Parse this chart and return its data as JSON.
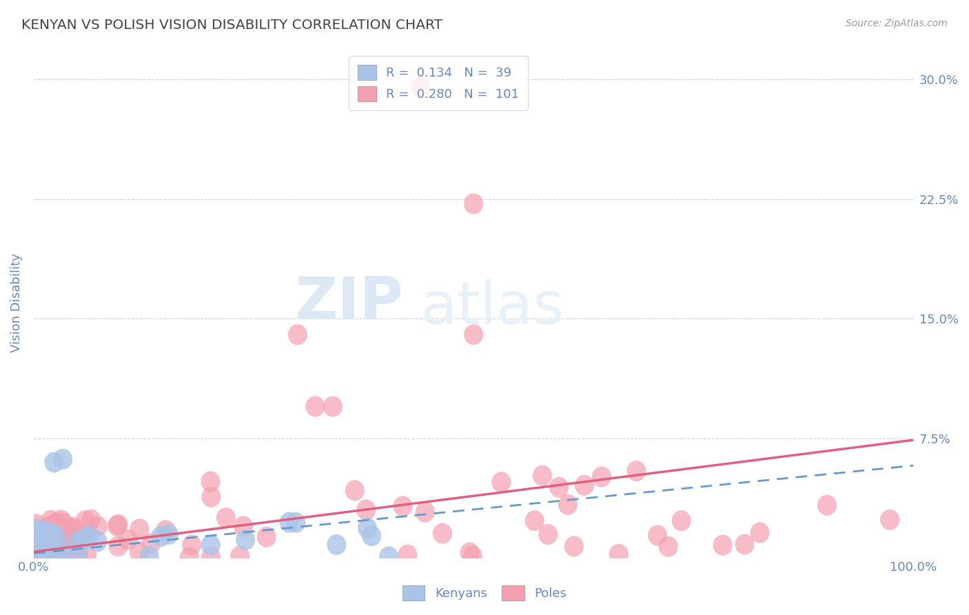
{
  "title": "KENYAN VS POLISH VISION DISABILITY CORRELATION CHART",
  "source": "Source: ZipAtlas.com",
  "ylabel": "Vision Disability",
  "xlabel": "",
  "xlim": [
    0.0,
    1.0
  ],
  "ylim": [
    0.0,
    0.32
  ],
  "yticks": [
    0.0,
    0.075,
    0.15,
    0.225,
    0.3
  ],
  "ytick_labels": [
    "",
    "7.5%",
    "15.0%",
    "22.5%",
    "30.0%"
  ],
  "xticks": [
    0.0,
    1.0
  ],
  "xtick_labels": [
    "0.0%",
    "100.0%"
  ],
  "legend_R_kenyan": "0.134",
  "legend_N_kenyan": "39",
  "legend_R_polish": "0.280",
  "legend_N_polish": "101",
  "kenyan_color": "#aac4e8",
  "polish_color": "#f4a0b0",
  "kenyan_line_color": "#6699cc",
  "polish_line_color": "#e06080",
  "title_color": "#444444",
  "tick_color": "#6688bb",
  "grid_color": "#ccccdd",
  "background_color": "#ffffff",
  "watermark_zip": "ZIP",
  "watermark_atlas": "atlas",
  "watermark_color": "#dde8f5",
  "polish_line_start_x": 0.0,
  "polish_line_start_y": 0.004,
  "polish_line_end_x": 1.0,
  "polish_line_end_y": 0.074,
  "kenyan_line_start_x": 0.0,
  "kenyan_line_start_y": 0.003,
  "kenyan_line_end_x": 1.0,
  "kenyan_line_end_y": 0.058
}
